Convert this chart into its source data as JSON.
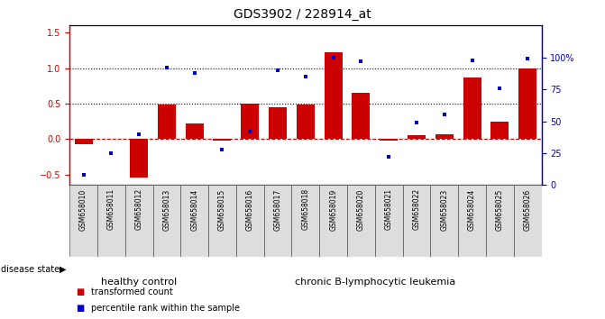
{
  "title": "GDS3902 / 228914_at",
  "samples": [
    "GSM658010",
    "GSM658011",
    "GSM658012",
    "GSM658013",
    "GSM658014",
    "GSM658015",
    "GSM658016",
    "GSM658017",
    "GSM658018",
    "GSM658019",
    "GSM658020",
    "GSM658021",
    "GSM658022",
    "GSM658023",
    "GSM658024",
    "GSM658025",
    "GSM658026"
  ],
  "bar_values": [
    -0.08,
    0.0,
    -0.55,
    0.48,
    0.22,
    -0.02,
    0.5,
    0.45,
    0.48,
    1.22,
    0.65,
    -0.02,
    0.05,
    0.07,
    0.87,
    0.24,
    1.0
  ],
  "dot_values_pct": [
    8,
    25,
    40,
    92,
    88,
    28,
    42,
    90,
    85,
    100,
    97,
    22,
    49,
    55,
    98,
    76,
    99
  ],
  "bar_color": "#CC0000",
  "dot_color": "#0000CC",
  "zero_line_color": "#CC0000",
  "dotted_line_color": "#000000",
  "ylim_left": [
    -0.65,
    1.6
  ],
  "ylim_right": [
    0,
    125
  ],
  "yticks_left": [
    -0.5,
    0.0,
    0.5,
    1.0,
    1.5
  ],
  "yticks_right": [
    0,
    25,
    50,
    75,
    100
  ],
  "ytick_labels_right": [
    "0",
    "25",
    "50",
    "75",
    "100%"
  ],
  "hlines": [
    1.0,
    0.5
  ],
  "healthy_control_count": 5,
  "healthy_control_color": "#90EE90",
  "leukemia_color": "#66DD66",
  "healthy_label": "healthy control",
  "leukemia_label": "chronic B-lymphocytic leukemia",
  "disease_state_label": "disease state",
  "legend_bar_label": "transformed count",
  "legend_dot_label": "percentile rank within the sample",
  "title_fontsize": 10,
  "tick_fontsize": 7,
  "label_fontsize": 8,
  "sample_fontsize": 5.5
}
